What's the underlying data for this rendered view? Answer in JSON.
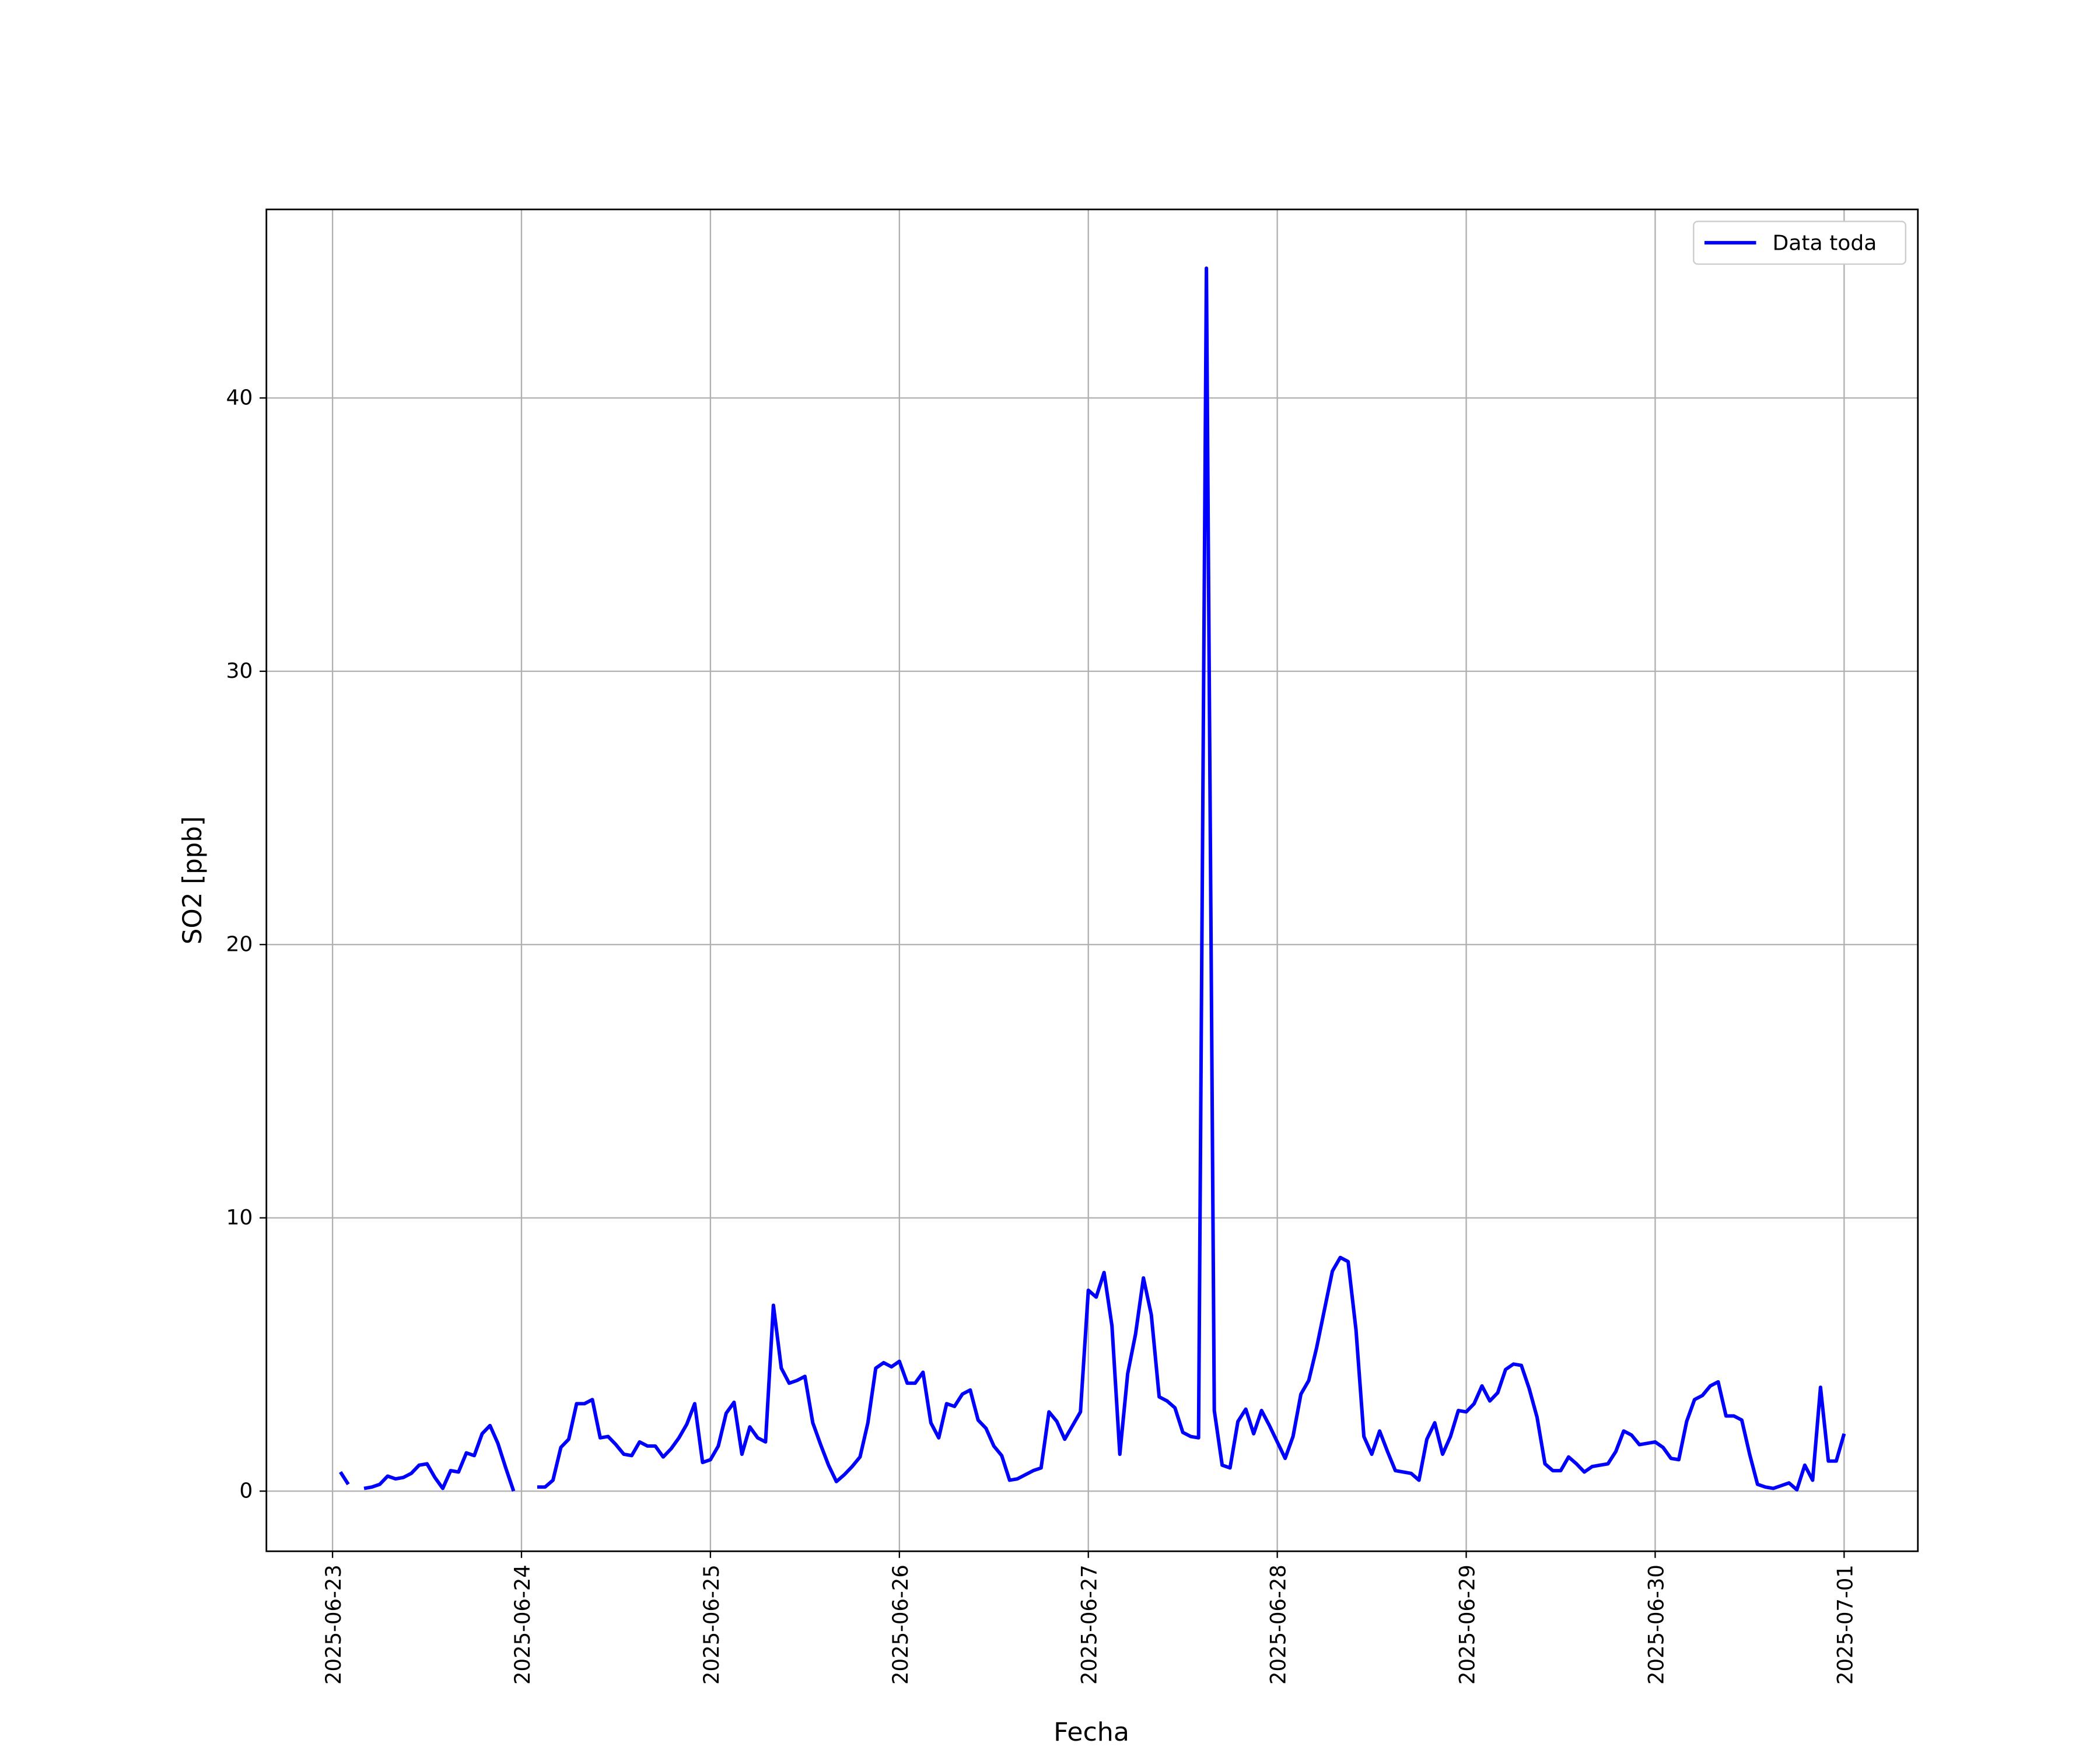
{
  "chart_data": {
    "type": "line",
    "x_label": "Fecha",
    "y_label": "SO2 [ppb]",
    "xlim": [
      "2025-06-22 15:36",
      "2025-07-01 09:22"
    ],
    "xticks": [
      "2025-06-23",
      "2025-06-24",
      "2025-06-25",
      "2025-06-26",
      "2025-06-27",
      "2025-06-28",
      "2025-06-29",
      "2025-06-30",
      "2025-07-01"
    ],
    "ylim": [
      -2.2,
      46.9
    ],
    "yticks": [
      0,
      10,
      20,
      30,
      40
    ],
    "grid": true,
    "legend": "upper right",
    "x": [
      "2025-06-23 01:00",
      "2025-06-23 02:00",
      "2025-06-23 03:00",
      "2025-06-23 04:00",
      "2025-06-23 05:00",
      "2025-06-23 06:00",
      "2025-06-23 07:00",
      "2025-06-23 08:00",
      "2025-06-23 09:00",
      "2025-06-23 10:00",
      "2025-06-23 11:00",
      "2025-06-23 12:00",
      "2025-06-23 13:00",
      "2025-06-23 14:00",
      "2025-06-23 15:00",
      "2025-06-23 16:00",
      "2025-06-23 17:00",
      "2025-06-23 18:00",
      "2025-06-23 19:00",
      "2025-06-23 20:00",
      "2025-06-23 21:00",
      "2025-06-23 22:00",
      "2025-06-23 23:00",
      "2025-06-24 00:00",
      "2025-06-24 01:00",
      "2025-06-24 02:00",
      "2025-06-24 03:00",
      "2025-06-24 04:00",
      "2025-06-24 05:00",
      "2025-06-24 06:00",
      "2025-06-24 07:00",
      "2025-06-24 08:00",
      "2025-06-24 09:00",
      "2025-06-24 10:00",
      "2025-06-24 11:00",
      "2025-06-24 12:00",
      "2025-06-24 13:00",
      "2025-06-24 14:00",
      "2025-06-24 15:00",
      "2025-06-24 16:00",
      "2025-06-24 17:00",
      "2025-06-24 18:00",
      "2025-06-24 19:00",
      "2025-06-24 20:00",
      "2025-06-24 21:00",
      "2025-06-24 22:00",
      "2025-06-24 23:00",
      "2025-06-25 00:00",
      "2025-06-25 01:00",
      "2025-06-25 02:00",
      "2025-06-25 03:00",
      "2025-06-25 04:00",
      "2025-06-25 05:00",
      "2025-06-25 06:00",
      "2025-06-25 07:00",
      "2025-06-25 08:00",
      "2025-06-25 09:00",
      "2025-06-25 10:00",
      "2025-06-25 11:00",
      "2025-06-25 12:00",
      "2025-06-25 13:00",
      "2025-06-25 14:00",
      "2025-06-25 15:00",
      "2025-06-25 16:00",
      "2025-06-25 17:00",
      "2025-06-25 18:00",
      "2025-06-25 19:00",
      "2025-06-25 20:00",
      "2025-06-25 21:00",
      "2025-06-25 22:00",
      "2025-06-25 23:00",
      "2025-06-26 00:00",
      "2025-06-26 01:00",
      "2025-06-26 02:00",
      "2025-06-26 03:00",
      "2025-06-26 04:00",
      "2025-06-26 05:00",
      "2025-06-26 06:00",
      "2025-06-26 07:00",
      "2025-06-26 08:00",
      "2025-06-26 09:00",
      "2025-06-26 10:00",
      "2025-06-26 11:00",
      "2025-06-26 12:00",
      "2025-06-26 13:00",
      "2025-06-26 14:00",
      "2025-06-26 15:00",
      "2025-06-26 16:00",
      "2025-06-26 17:00",
      "2025-06-26 18:00",
      "2025-06-26 19:00",
      "2025-06-26 20:00",
      "2025-06-26 21:00",
      "2025-06-26 22:00",
      "2025-06-26 23:00",
      "2025-06-27 00:00",
      "2025-06-27 01:00",
      "2025-06-27 02:00",
      "2025-06-27 03:00",
      "2025-06-27 04:00",
      "2025-06-27 05:00",
      "2025-06-27 06:00",
      "2025-06-27 07:00",
      "2025-06-27 08:00",
      "2025-06-27 09:00",
      "2025-06-27 10:00",
      "2025-06-27 11:00",
      "2025-06-27 12:00",
      "2025-06-27 13:00",
      "2025-06-27 14:00",
      "2025-06-27 15:00",
      "2025-06-27 16:00",
      "2025-06-27 17:00",
      "2025-06-27 18:00",
      "2025-06-27 19:00",
      "2025-06-27 20:00",
      "2025-06-27 21:00",
      "2025-06-27 22:00",
      "2025-06-27 23:00",
      "2025-06-28 00:00",
      "2025-06-28 01:00",
      "2025-06-28 02:00",
      "2025-06-28 03:00",
      "2025-06-28 04:00",
      "2025-06-28 05:00",
      "2025-06-28 06:00",
      "2025-06-28 07:00",
      "2025-06-28 08:00",
      "2025-06-28 09:00",
      "2025-06-28 10:00",
      "2025-06-28 11:00",
      "2025-06-28 12:00",
      "2025-06-28 13:00",
      "2025-06-28 14:00",
      "2025-06-28 15:00",
      "2025-06-28 16:00",
      "2025-06-28 17:00",
      "2025-06-28 18:00",
      "2025-06-28 19:00",
      "2025-06-28 20:00",
      "2025-06-28 21:00",
      "2025-06-28 22:00",
      "2025-06-28 23:00",
      "2025-06-29 00:00",
      "2025-06-29 01:00",
      "2025-06-29 02:00",
      "2025-06-29 03:00",
      "2025-06-29 04:00",
      "2025-06-29 05:00",
      "2025-06-29 06:00",
      "2025-06-29 07:00",
      "2025-06-29 08:00",
      "2025-06-29 09:00",
      "2025-06-29 10:00",
      "2025-06-29 11:00",
      "2025-06-29 12:00",
      "2025-06-29 13:00",
      "2025-06-29 14:00",
      "2025-06-29 15:00",
      "2025-06-29 16:00",
      "2025-06-29 17:00",
      "2025-06-29 18:00",
      "2025-06-29 19:00",
      "2025-06-29 20:00",
      "2025-06-29 21:00",
      "2025-06-29 22:00",
      "2025-06-29 23:00",
      "2025-06-30 00:00",
      "2025-06-30 01:00",
      "2025-06-30 02:00",
      "2025-06-30 03:00",
      "2025-06-30 04:00",
      "2025-06-30 05:00",
      "2025-06-30 06:00",
      "2025-06-30 07:00",
      "2025-06-30 08:00",
      "2025-06-30 09:00",
      "2025-06-30 10:00",
      "2025-06-30 11:00",
      "2025-06-30 12:00",
      "2025-06-30 13:00",
      "2025-06-30 14:00",
      "2025-06-30 15:00",
      "2025-06-30 16:00",
      "2025-06-30 17:00",
      "2025-06-30 18:00",
      "2025-06-30 19:00",
      "2025-06-30 20:00",
      "2025-06-30 21:00",
      "2025-06-30 22:00",
      "2025-06-30 23:00",
      "2025-07-01 00:00"
    ],
    "series": [
      {
        "name": "Data toda",
        "color": "#0000ff",
        "values": [
          0.7,
          0.25,
          null,
          0.1,
          0.15,
          0.25,
          0.55,
          0.45,
          0.5,
          0.65,
          0.95,
          1.0,
          0.5,
          0.1,
          0.75,
          0.7,
          1.4,
          1.3,
          2.1,
          2.4,
          1.75,
          0.85,
          0.0,
          null,
          null,
          0.15,
          0.15,
          0.4,
          1.6,
          1.9,
          3.2,
          3.2,
          3.35,
          1.95,
          2.0,
          1.7,
          1.35,
          1.3,
          1.8,
          1.65,
          1.65,
          1.25,
          1.55,
          1.95,
          2.45,
          3.2,
          1.05,
          1.15,
          1.65,
          2.85,
          3.25,
          1.35,
          2.35,
          1.95,
          1.8,
          6.8,
          4.5,
          3.95,
          4.05,
          4.2,
          2.5,
          1.7,
          0.95,
          0.35,
          0.6,
          0.9,
          1.25,
          2.5,
          4.5,
          4.7,
          4.55,
          4.75,
          3.95,
          3.95,
          4.35,
          2.5,
          1.95,
          3.2,
          3.1,
          3.55,
          3.7,
          2.6,
          2.3,
          1.65,
          1.3,
          0.4,
          0.45,
          0.6,
          0.75,
          0.85,
          2.9,
          2.55,
          1.9,
          2.4,
          2.9,
          7.35,
          7.1,
          8.0,
          6.05,
          1.35,
          4.3,
          5.75,
          7.8,
          6.45,
          3.45,
          3.3,
          3.05,
          2.15,
          2.0,
          1.95,
          44.75,
          2.95,
          0.95,
          0.85,
          2.55,
          3.0,
          2.1,
          2.95,
          2.4,
          1.8,
          1.2,
          2.0,
          3.55,
          4.05,
          5.25,
          6.65,
          8.05,
          8.55,
          8.4,
          5.9,
          2.0,
          1.35,
          2.2,
          1.45,
          0.75,
          0.7,
          0.65,
          0.4,
          1.9,
          2.5,
          1.35,
          2.0,
          2.95,
          2.9,
          3.2,
          3.85,
          3.3,
          3.6,
          4.45,
          4.65,
          4.6,
          3.75,
          2.7,
          1.0,
          0.75,
          0.75,
          1.25,
          1.0,
          0.7,
          0.9,
          0.95,
          1.0,
          1.45,
          2.2,
          2.05,
          1.7,
          1.75,
          1.8,
          1.6,
          1.2,
          1.15,
          2.55,
          3.35,
          3.5,
          3.85,
          4.0,
          2.75,
          2.75,
          2.6,
          1.35,
          0.25,
          0.15,
          0.1,
          0.2,
          0.3,
          0.05,
          0.95,
          0.4,
          3.8,
          1.1,
          1.1,
          2.1
        ]
      }
    ]
  }
}
